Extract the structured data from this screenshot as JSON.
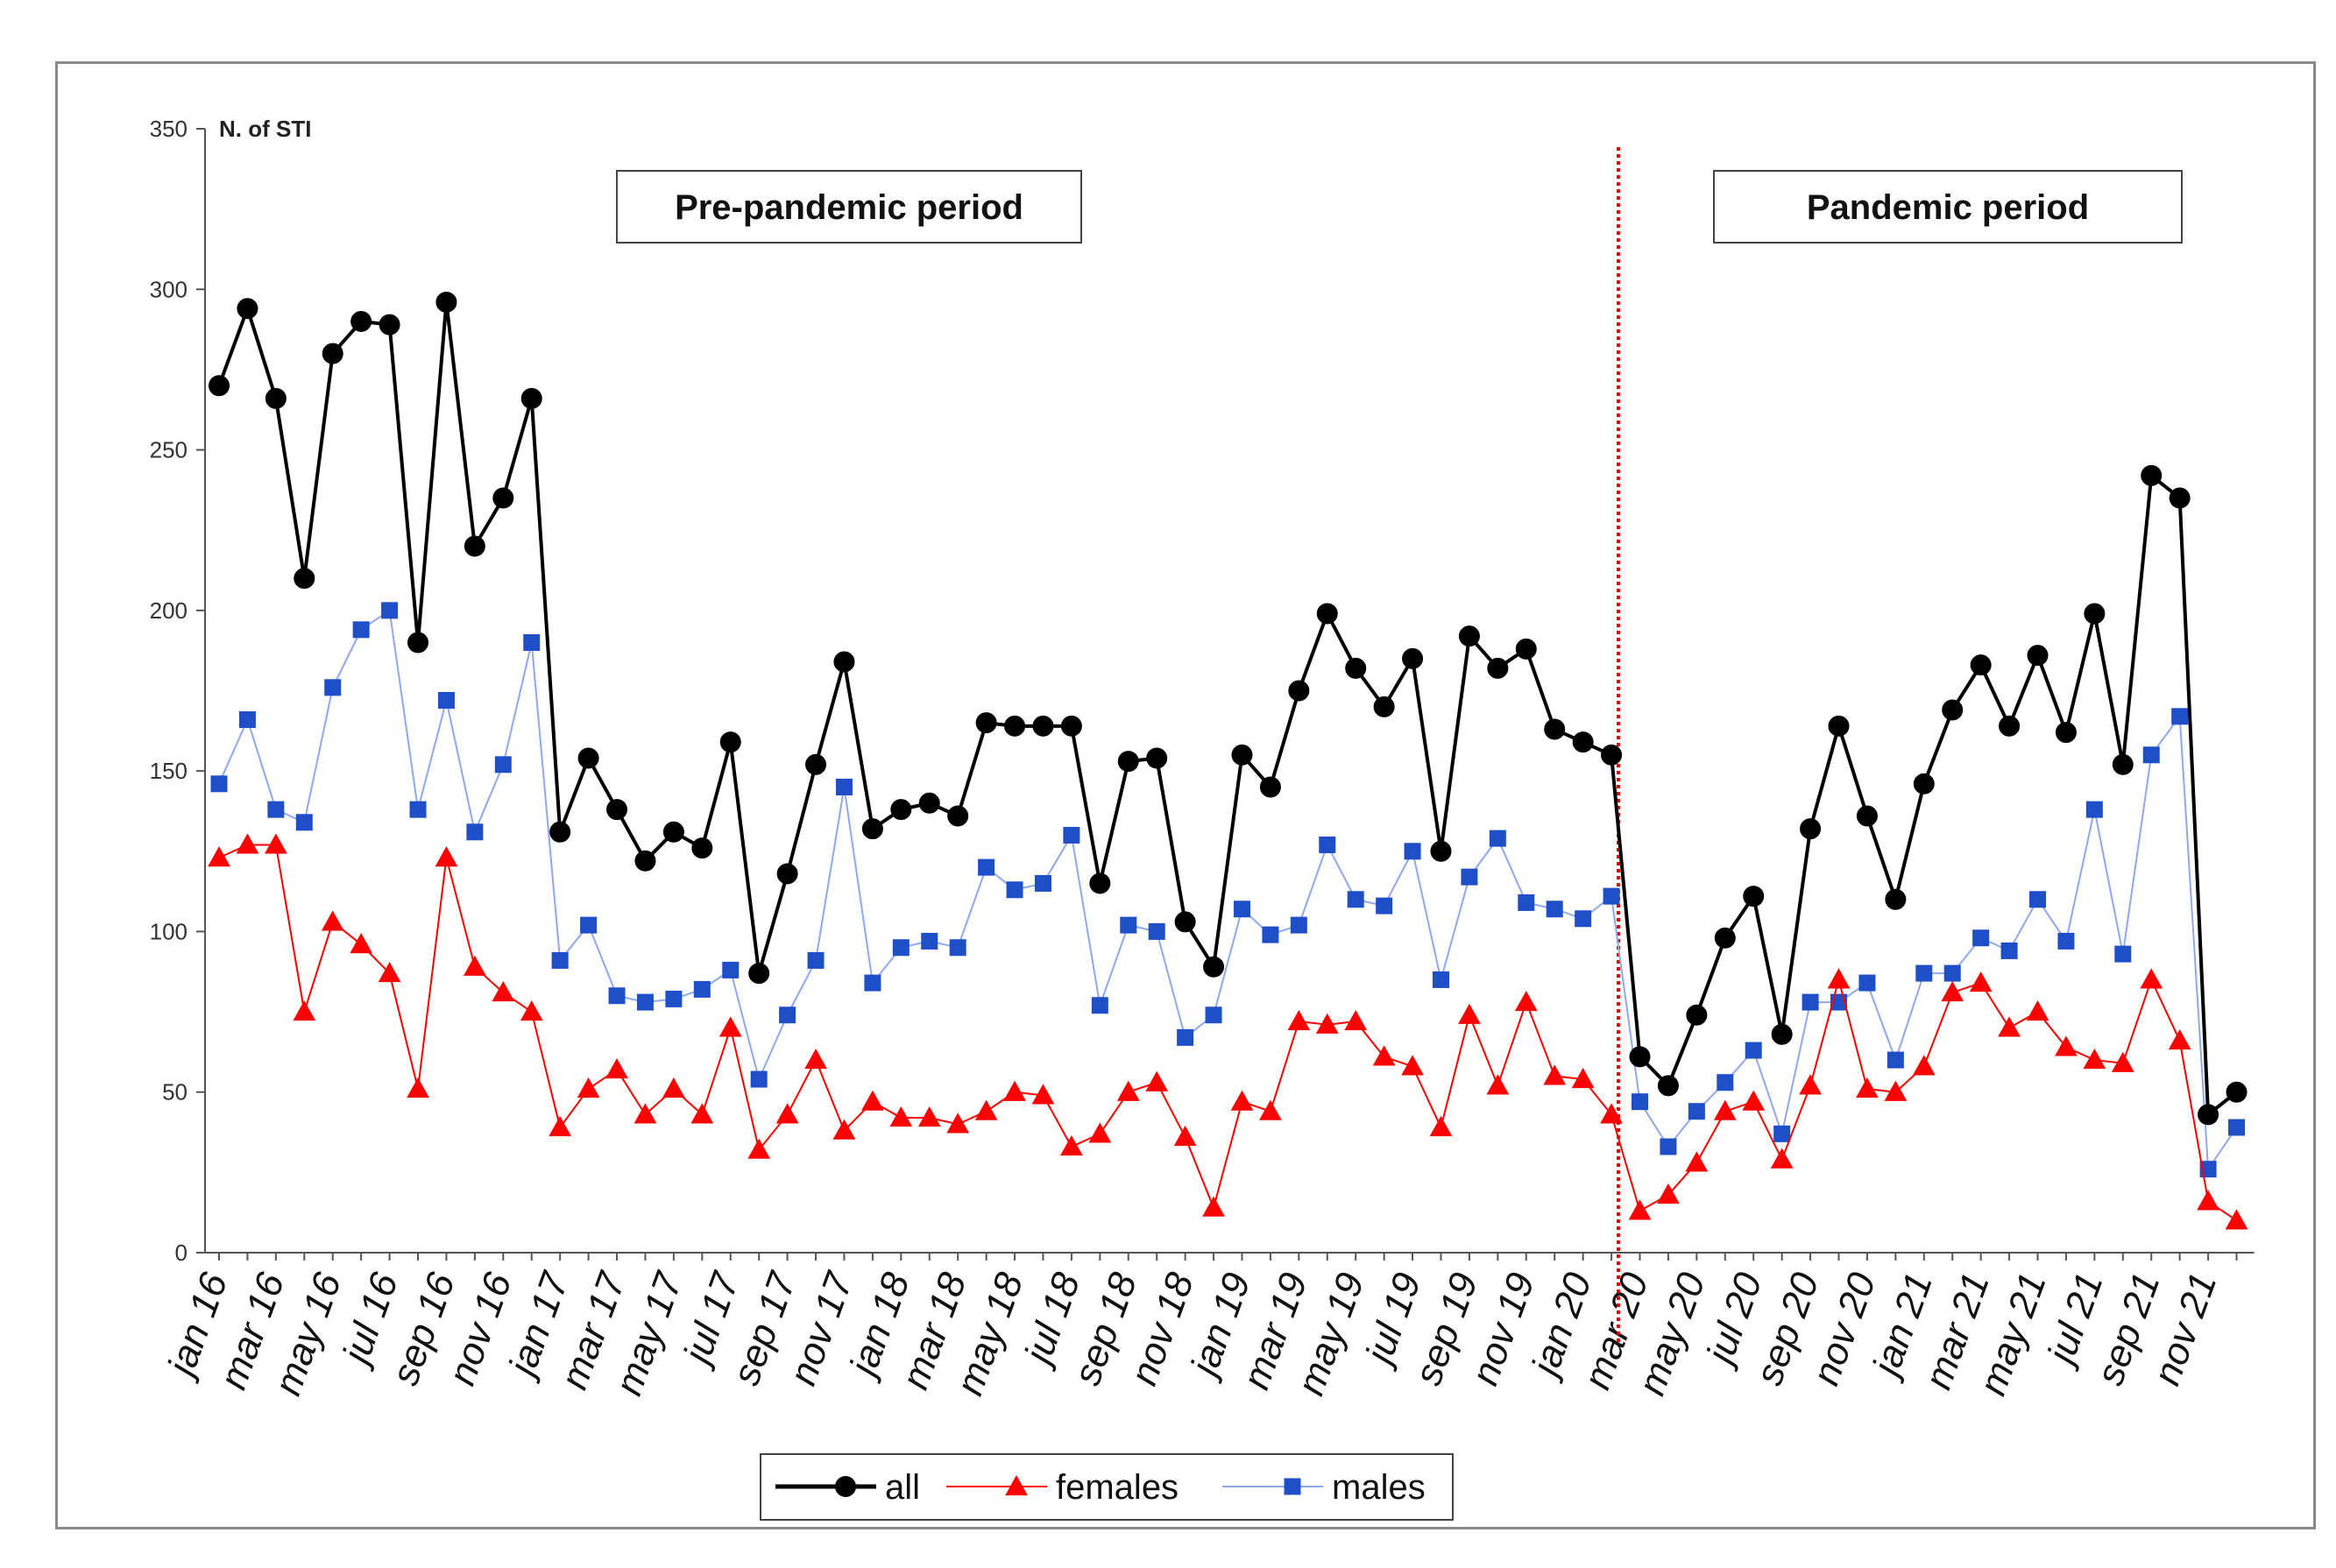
{
  "chart_data": {
    "type": "line",
    "ylabel": "N. of STI",
    "ylim": [
      0,
      350
    ],
    "yticks": [
      0,
      50,
      100,
      150,
      200,
      250,
      300,
      350
    ],
    "x": [
      "jan 16",
      "feb 16",
      "mar 16",
      "apr 16",
      "may 16",
      "jun 16",
      "jul 16",
      "aug 16",
      "sep 16",
      "oct 16",
      "nov 16",
      "dec 16",
      "jan 17",
      "feb 17",
      "mar 17",
      "apr 17",
      "may 17",
      "jun 17",
      "jul 17",
      "aug 17",
      "sep 17",
      "oct 17",
      "nov 17",
      "dec 17",
      "jan 18",
      "feb 18",
      "mar 18",
      "apr 18",
      "may 18",
      "jun 18",
      "jul 18",
      "aug 18",
      "sep 18",
      "oct 18",
      "nov 18",
      "dec 18",
      "jan 19",
      "feb 19",
      "mar 19",
      "apr 19",
      "may 19",
      "jun 19",
      "jul 19",
      "aug 19",
      "sep 19",
      "oct 19",
      "nov 19",
      "dec 19",
      "jan 20",
      "feb 20",
      "mar 20",
      "apr 20",
      "may 20",
      "jun 20",
      "jul 20",
      "aug 20",
      "sep 20",
      "oct 20",
      "nov 20",
      "dec 20",
      "jan 21",
      "feb 21",
      "mar 21",
      "apr 21",
      "may 21",
      "jun 21",
      "jul 21",
      "aug 21",
      "sep 21",
      "oct 21",
      "nov 21",
      "dec 21"
    ],
    "xtick_labels": [
      "jan 16",
      "mar 16",
      "may 16",
      "jul 16",
      "sep 16",
      "nov 16",
      "jan 17",
      "mar 17",
      "may 17",
      "jul 17",
      "sep 17",
      "nov 17",
      "jan 18",
      "mar 18",
      "may 18",
      "jul 18",
      "sep 18",
      "nov 18",
      "jan 19",
      "mar 19",
      "may 19",
      "jul 19",
      "sep 19",
      "nov 19",
      "jan 20",
      "mar 20",
      "may 20",
      "jul 20",
      "sep 20",
      "nov 20",
      "jan 21",
      "mar 21",
      "may 21",
      "jul 21",
      "sep 21",
      "nov 21"
    ],
    "series": [
      {
        "name": "all",
        "color": "#000000",
        "marker": "circle",
        "values": [
          270,
          294,
          266,
          210,
          280,
          290,
          289,
          190,
          296,
          220,
          235,
          266,
          131,
          154,
          138,
          122,
          131,
          126,
          159,
          87,
          118,
          152,
          184,
          132,
          138,
          140,
          136,
          165,
          164,
          164,
          164,
          115,
          153,
          154,
          103,
          89,
          155,
          145,
          175,
          199,
          182,
          170,
          185,
          125,
          192,
          182,
          188,
          163,
          159,
          155,
          61,
          52,
          74,
          98,
          111,
          68,
          132,
          164,
          136,
          110,
          146,
          169,
          183,
          164,
          186,
          162,
          199,
          152,
          242,
          235,
          43,
          50
        ]
      },
      {
        "name": "females",
        "color": "#ff0000",
        "marker": "triangle",
        "values": [
          123,
          127,
          127,
          75,
          103,
          96,
          87,
          51,
          123,
          89,
          81,
          75,
          39,
          51,
          57,
          43,
          51,
          43,
          70,
          32,
          43,
          60,
          38,
          47,
          42,
          42,
          40,
          44,
          50,
          49,
          33,
          37,
          50,
          53,
          36,
          14,
          47,
          44,
          72,
          71,
          72,
          61,
          58,
          39,
          74,
          52,
          78,
          55,
          54,
          43,
          13,
          18,
          28,
          44,
          47,
          29,
          52,
          85,
          51,
          50,
          58,
          81,
          84,
          70,
          75,
          64,
          60,
          59,
          85,
          66,
          16,
          10
        ]
      },
      {
        "name": "males",
        "color": "#1f4fc8",
        "marker": "square",
        "values": [
          146,
          166,
          138,
          134,
          176,
          194,
          200,
          138,
          172,
          131,
          152,
          190,
          91,
          102,
          80,
          78,
          79,
          82,
          88,
          54,
          74,
          91,
          145,
          84,
          95,
          97,
          95,
          120,
          113,
          115,
          130,
          77,
          102,
          100,
          67,
          74,
          107,
          99,
          102,
          127,
          110,
          108,
          125,
          85,
          117,
          129,
          109,
          107,
          104,
          111,
          47,
          33,
          44,
          53,
          63,
          37,
          78,
          78,
          84,
          60,
          87,
          87,
          98,
          94,
          110,
          97,
          138,
          93,
          155,
          167,
          26,
          39
        ]
      }
    ],
    "annotations": [
      "Pre-pandemic period",
      "Pandemic period"
    ],
    "vertical_marker_after": "feb 20",
    "legend": [
      "all",
      "females",
      "males"
    ],
    "legend_position": "bottom-center"
  }
}
